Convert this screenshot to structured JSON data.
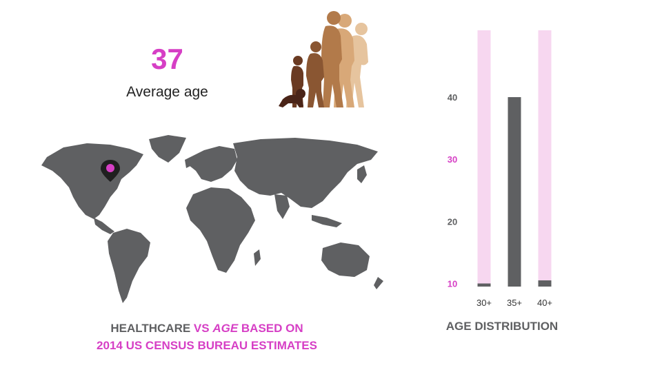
{
  "colors": {
    "accent": "#d63fc5",
    "gray": "#5f6062",
    "pink_track": "#f7d7f0",
    "text_dark": "#222222"
  },
  "stat": {
    "value": "37",
    "label": "Average age"
  },
  "caption": {
    "part1": "HEALTHCARE ",
    "vs": "VS ",
    "age": "AGE",
    "based": " BASED ON",
    "line2": "2014 US CENSUS BUREAU  ESTIMATES"
  },
  "map": {
    "marker_icon": "location-pin-icon",
    "marker_region": "north-america-east"
  },
  "chart_data": {
    "type": "bar",
    "title": "AGE DISTRIBUTION",
    "categories": [
      "30+",
      "35+",
      "40+"
    ],
    "values": [
      10,
      40,
      10.5
    ],
    "background_track": [
      true,
      false,
      true
    ],
    "yticks": [
      10,
      20,
      30,
      40
    ],
    "highlighted_ticks": [
      10,
      30
    ],
    "ylim": [
      9.5,
      50
    ],
    "grid": false
  }
}
